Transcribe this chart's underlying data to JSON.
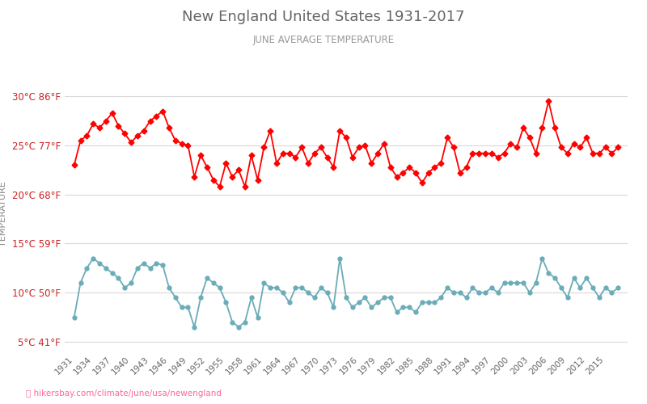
{
  "title": "New England United States 1931-2017",
  "subtitle": "JUNE AVERAGE TEMPERATURE",
  "ylabel": "TEMPERATURE",
  "xlabel_url": "hikersbay.com/climate/june/usa/newengland",
  "years": [
    1931,
    1932,
    1933,
    1934,
    1935,
    1936,
    1937,
    1938,
    1939,
    1940,
    1941,
    1942,
    1943,
    1944,
    1945,
    1946,
    1947,
    1948,
    1949,
    1950,
    1951,
    1952,
    1953,
    1954,
    1955,
    1956,
    1957,
    1958,
    1959,
    1960,
    1961,
    1962,
    1963,
    1964,
    1965,
    1966,
    1967,
    1968,
    1969,
    1970,
    1971,
    1972,
    1973,
    1974,
    1975,
    1976,
    1977,
    1978,
    1979,
    1980,
    1981,
    1982,
    1983,
    1984,
    1985,
    1986,
    1987,
    1988,
    1989,
    1990,
    1991,
    1992,
    1993,
    1994,
    1995,
    1996,
    1997,
    1998,
    1999,
    2000,
    2001,
    2002,
    2003,
    2004,
    2005,
    2006,
    2007,
    2008,
    2009,
    2010,
    2011,
    2012,
    2013,
    2014,
    2015,
    2016,
    2017
  ],
  "day_temps": [
    23.0,
    25.5,
    26.0,
    27.2,
    26.8,
    27.5,
    28.3,
    27.0,
    26.2,
    25.3,
    26.0,
    26.5,
    27.5,
    28.0,
    28.5,
    26.8,
    25.5,
    25.2,
    25.0,
    21.8,
    24.0,
    22.8,
    21.5,
    20.8,
    23.2,
    21.8,
    22.5,
    20.8,
    24.0,
    21.5,
    24.8,
    26.5,
    23.2,
    24.2,
    24.2,
    23.8,
    24.8,
    23.2,
    24.2,
    24.8,
    23.8,
    22.8,
    26.5,
    25.8,
    23.8,
    24.8,
    25.0,
    23.2,
    24.2,
    25.2,
    22.8,
    21.8,
    22.2,
    22.8,
    22.2,
    21.2,
    22.2,
    22.8,
    23.2,
    25.8,
    24.8,
    22.2,
    22.8,
    24.2,
    24.2,
    24.2,
    24.2,
    23.8,
    24.2,
    25.2,
    24.8,
    26.8,
    25.8,
    24.2,
    26.8,
    29.5,
    26.8,
    24.8,
    24.2,
    25.2,
    24.8,
    25.8,
    24.2,
    24.2,
    24.8,
    24.2,
    24.8
  ],
  "night_temps": [
    7.5,
    11.0,
    12.5,
    13.5,
    13.0,
    12.5,
    12.0,
    11.5,
    10.5,
    11.0,
    12.5,
    13.0,
    12.5,
    13.0,
    12.8,
    10.5,
    9.5,
    8.5,
    8.5,
    6.5,
    9.5,
    11.5,
    11.0,
    10.5,
    9.0,
    7.0,
    6.5,
    7.0,
    9.5,
    7.5,
    11.0,
    10.5,
    10.5,
    10.0,
    9.0,
    10.5,
    10.5,
    10.0,
    9.5,
    10.5,
    10.0,
    8.5,
    13.5,
    9.5,
    8.5,
    9.0,
    9.5,
    8.5,
    9.0,
    9.5,
    9.5,
    8.0,
    8.5,
    8.5,
    8.0,
    9.0,
    9.0,
    9.0,
    9.5,
    10.5,
    10.0,
    10.0,
    9.5,
    10.5,
    10.0,
    10.0,
    10.5,
    10.0,
    11.0,
    11.0,
    11.0,
    11.0,
    10.0,
    11.0,
    13.5,
    12.0,
    11.5,
    10.5,
    9.5,
    11.5,
    10.5,
    11.5,
    10.5,
    9.5,
    10.5,
    10.0,
    10.5
  ],
  "y_ticks_c": [
    5,
    10,
    15,
    20,
    25,
    30
  ],
  "y_ticks_f": [
    41,
    50,
    59,
    68,
    77,
    86
  ],
  "ylim": [
    4,
    32
  ],
  "day_color": "#ff0000",
  "night_color": "#6aacb8",
  "title_color": "#666666",
  "subtitle_color": "#999999",
  "ylabel_color": "#888888",
  "tick_color_red": "#cc2222",
  "grid_color": "#d8d8d8",
  "url_color": "#ff6699",
  "marker_size": 3.5,
  "line_width": 1.3,
  "bg_color": "#ffffff"
}
